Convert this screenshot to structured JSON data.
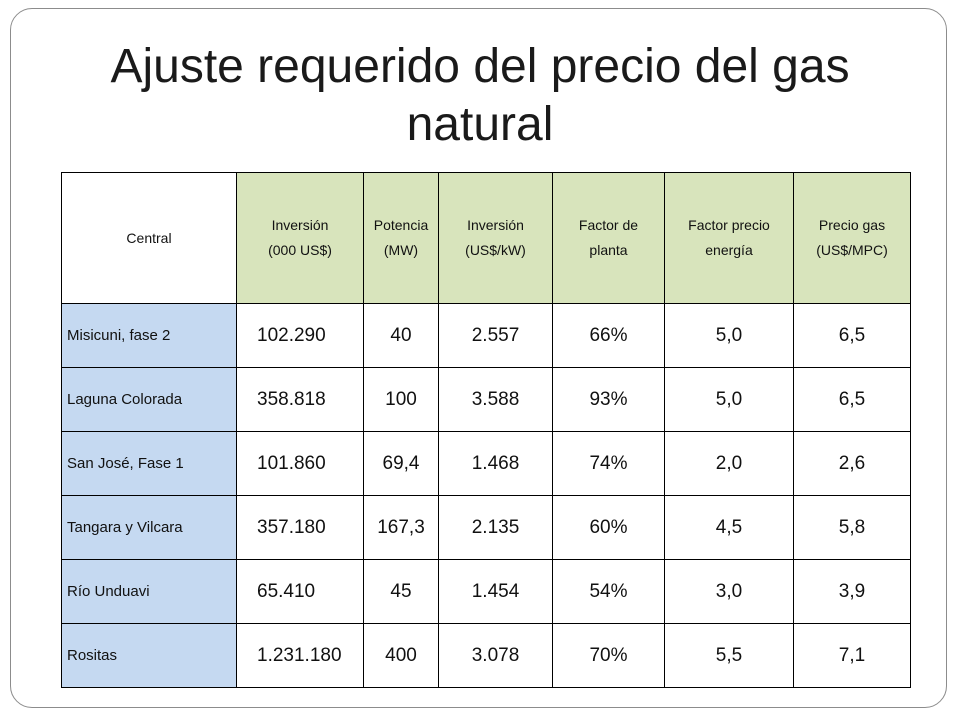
{
  "title": "Ajuste requerido del precio del gas natural",
  "table": {
    "headers": [
      "Central",
      "Inversión\n(000 US$)",
      "Potencia\n(MW)",
      "Inversión\n(US$/kW)",
      "Factor de\nplanta",
      "Factor precio\nenergía",
      "Precio gas\n(US$/MPC)"
    ],
    "rows": [
      [
        "Misicuni, fase 2",
        "102.290",
        "40",
        "2.557",
        "66%",
        "5,0",
        "6,5"
      ],
      [
        "Laguna Colorada",
        "358.818",
        "100",
        "3.588",
        "93%",
        "5,0",
        "6,5"
      ],
      [
        "San José, Fase 1",
        "101.860",
        "69,4",
        "1.468",
        "74%",
        "2,0",
        "2,6"
      ],
      [
        "Tangara y Vilcara",
        "357.180",
        "167,3",
        "2.135",
        "60%",
        "4,5",
        "5,8"
      ],
      [
        "Río Unduavi",
        "65.410",
        "45",
        "1.454",
        "54%",
        "3,0",
        "3,9"
      ],
      [
        "Rositas",
        "1.231.180",
        "400",
        "3.078",
        "70%",
        "5,5",
        "7,1"
      ]
    ]
  },
  "colors": {
    "header_fill": "#d8e4bc",
    "name_column_fill": "#c5d9f1",
    "border": "#000000"
  }
}
